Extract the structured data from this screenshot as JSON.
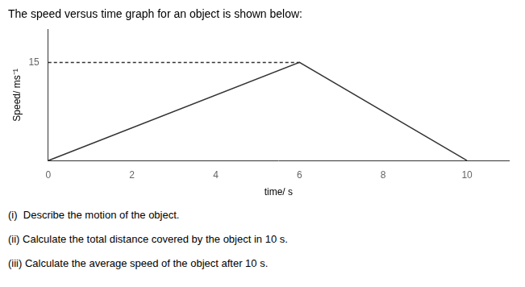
{
  "chart_data": {
    "type": "line",
    "title": "The speed versus time graph for an object is shown below:",
    "x_label": "time/ s",
    "y_label": "Speed/ ms⁻¹",
    "series": [
      {
        "x": [
          0,
          6,
          10
        ],
        "values": [
          0,
          15,
          0
        ],
        "color": "#333333",
        "line_style": "solid"
      },
      {
        "x": [
          0,
          6
        ],
        "values": [
          15,
          15
        ],
        "color": "#333333",
        "line_style": "dashed"
      }
    ],
    "xlim": [
      0,
      11
    ],
    "ylim": [
      0,
      20
    ],
    "xticks": [
      0,
      2,
      4,
      6,
      8,
      10
    ],
    "yticks": [
      15
    ],
    "grid": false,
    "annotations": [
      "(i)  Describe the motion of the object.",
      "(ii) Calculate the total distance covered by the object in 10 s.",
      "(iii) Calculate the average speed of the object after 10 s."
    ]
  }
}
